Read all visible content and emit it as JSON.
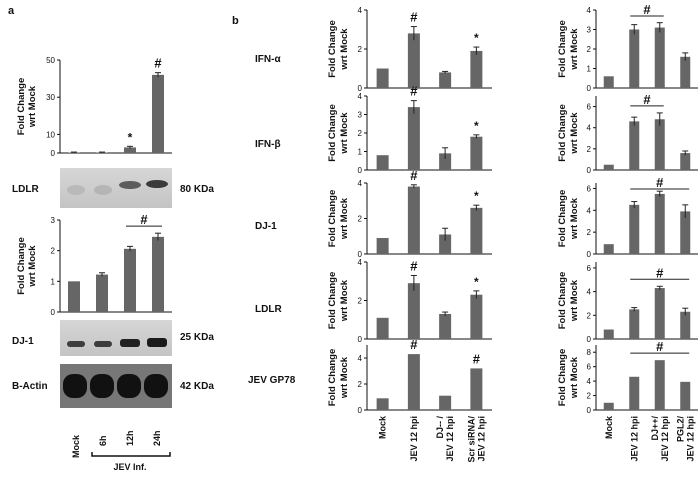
{
  "panel_labels": {
    "a": "a",
    "b": "b"
  },
  "yaxis_label": {
    "line1": "Fold Change",
    "line2": "wrt Mock"
  },
  "blots": {
    "ldlr": {
      "label": "LDLR",
      "size": "80 KDa"
    },
    "dj1": {
      "label": "DJ-1",
      "size": "25 KDa"
    },
    "actin": {
      "label": "B-Actin",
      "size": "42 KDa"
    }
  },
  "panel_a_xlabels": [
    "Mock",
    "6h",
    "12h",
    "24h"
  ],
  "panel_a_group_label": "JEV Inf.",
  "row_labels": [
    "IFN-α",
    "IFN-β",
    "DJ-1",
    "LDLR",
    "JEV GP78"
  ],
  "b_mid_xlabels": [
    [
      "Mock"
    ],
    [
      "JEV 12 hpi"
    ],
    [
      "DJ-- /",
      "JEV 12 hpi"
    ],
    [
      "Scr siRNA/",
      "JEV 12 hpi"
    ]
  ],
  "b_right_xlabels": [
    [
      "Mock"
    ],
    [
      "JEV 12 hpi"
    ],
    [
      "DJ++/",
      "JEV 12 hpi"
    ],
    [
      "PGL2/",
      "JEV 12 hpi"
    ]
  ],
  "colors": {
    "bar": "#666666",
    "axis": "#111111"
  },
  "chart_data": [
    {
      "id": "a_top",
      "type": "bar",
      "categories": [
        "Mock",
        "6h",
        "12h",
        "24h"
      ],
      "values": [
        0.3,
        0.3,
        3,
        42
      ],
      "errors": [
        0.2,
        0.2,
        0.6,
        1.2
      ],
      "ylim": [
        0,
        50
      ],
      "yticks": [
        0,
        10,
        30,
        50
      ],
      "marks": [
        "",
        "",
        "*",
        "#"
      ],
      "ylabel": "Fold Change wrt Mock"
    },
    {
      "id": "a_dj1",
      "type": "bar",
      "categories": [
        "Mock",
        "6h",
        "12h",
        "24h"
      ],
      "values": [
        1,
        1.22,
        2.06,
        2.45
      ],
      "errors": [
        0,
        0.06,
        0.08,
        0.12
      ],
      "ylim": [
        0,
        3
      ],
      "yticks": [
        0,
        1,
        2,
        3
      ],
      "bracket": {
        "from": 2,
        "to": 3,
        "mark": "#"
      },
      "ylabel": "Fold Change wrt Mock"
    },
    {
      "id": "b_ifna",
      "type": "bar",
      "categories": [
        "Mock",
        "JEV 12 hpi",
        "DJ-- / JEV 12 hpi",
        "Scr siRNA/ JEV 12 hpi"
      ],
      "values": [
        1,
        2.8,
        0.8,
        1.9
      ],
      "errors": [
        0,
        0.35,
        0.05,
        0.2
      ],
      "ylim": [
        0,
        4
      ],
      "yticks": [
        0,
        2,
        4
      ],
      "marks": [
        "",
        "#",
        "",
        "*"
      ]
    },
    {
      "id": "b_ifnb",
      "type": "bar",
      "categories": [
        "Mock",
        "JEV 12 hpi",
        "DJ-- / JEV 12 hpi",
        "Scr siRNA/ JEV 12 hpi"
      ],
      "values": [
        0.8,
        3.4,
        0.9,
        1.8
      ],
      "errors": [
        0,
        0.35,
        0.3,
        0.1
      ],
      "ylim": [
        0,
        4
      ],
      "yticks": [
        0,
        1,
        2,
        3,
        4
      ],
      "marks": [
        "",
        "#",
        "",
        "*"
      ]
    },
    {
      "id": "b_dj1",
      "type": "bar",
      "categories": [
        "Mock",
        "JEV 12 hpi",
        "DJ-- / JEV 12 hpi",
        "Scr siRNA/ JEV 12 hpi"
      ],
      "values": [
        0.9,
        3.8,
        1.1,
        2.6
      ],
      "errors": [
        0,
        0.1,
        0.35,
        0.15
      ],
      "ylim": [
        0,
        4
      ],
      "yticks": [
        0,
        2,
        4
      ],
      "marks": [
        "",
        "#",
        "",
        "*"
      ]
    },
    {
      "id": "b_ldlr",
      "type": "bar",
      "categories": [
        "Mock",
        "JEV 12 hpi",
        "DJ-- / JEV 12 hpi",
        "Scr siRNA/ JEV 12 hpi"
      ],
      "values": [
        1.1,
        2.9,
        1.3,
        2.3
      ],
      "errors": [
        0,
        0.4,
        0.1,
        0.2
      ],
      "ylim": [
        0,
        4
      ],
      "yticks": [
        0,
        2,
        4
      ],
      "marks": [
        "",
        "#",
        "",
        "*"
      ]
    },
    {
      "id": "b_gp78",
      "type": "bar",
      "categories": [
        "Mock",
        "JEV 12 hpi",
        "DJ-- / JEV 12 hpi",
        "Scr siRNA/ JEV 12 hpi"
      ],
      "values": [
        0.9,
        4.3,
        1.1,
        3.2
      ],
      "errors": [
        0,
        0,
        0,
        0
      ],
      "ylim": [
        0,
        5
      ],
      "yticks": [
        0,
        2,
        4
      ],
      "marks": [
        "",
        "#",
        "",
        "#"
      ]
    },
    {
      "id": "c_ifna",
      "type": "bar",
      "categories": [
        "Mock",
        "JEV 12 hpi",
        "DJ++/ JEV 12 hpi",
        "PGL2/ JEV 12 hpi"
      ],
      "values": [
        0.6,
        3.0,
        3.1,
        1.6
      ],
      "errors": [
        0,
        0.25,
        0.25,
        0.2
      ],
      "ylim": [
        0,
        4
      ],
      "yticks": [
        0,
        1,
        2,
        3,
        4
      ],
      "bracket": {
        "from": 1,
        "to": 2,
        "mark": "#"
      }
    },
    {
      "id": "c_ifnb",
      "type": "bar",
      "categories": [
        "Mock",
        "JEV 12 hpi",
        "DJ++/ JEV 12 hpi",
        "PGL2/ JEV 12 hpi"
      ],
      "values": [
        0.5,
        4.6,
        4.8,
        1.6
      ],
      "errors": [
        0,
        0.4,
        0.6,
        0.2
      ],
      "ylim": [
        0,
        7
      ],
      "yticks": [
        0,
        2,
        4,
        6
      ],
      "bracket": {
        "from": 1,
        "to": 2,
        "mark": "#"
      }
    },
    {
      "id": "c_dj1",
      "type": "bar",
      "categories": [
        "Mock",
        "JEV 12 hpi",
        "DJ++/ JEV 12 hpi",
        "PGL2/ JEV 12 hpi"
      ],
      "values": [
        0.9,
        4.5,
        5.5,
        3.9
      ],
      "errors": [
        0,
        0.3,
        0.25,
        0.6
      ],
      "ylim": [
        0,
        6.5
      ],
      "yticks": [
        0,
        2,
        4,
        6
      ],
      "bracket": {
        "from": 1,
        "to": 3,
        "mark": "#"
      }
    },
    {
      "id": "c_ldlr",
      "type": "bar",
      "categories": [
        "Mock",
        "JEV 12 hpi",
        "DJ++/ JEV 12 hpi",
        "PGL2/ JEV 12 hpi"
      ],
      "values": [
        0.8,
        2.5,
        4.3,
        2.3
      ],
      "errors": [
        0,
        0.15,
        0.15,
        0.3
      ],
      "ylim": [
        0,
        6.5
      ],
      "yticks": [
        0,
        2,
        4,
        6
      ],
      "bracket": {
        "from": 1,
        "to": 3,
        "mark": "#"
      }
    },
    {
      "id": "c_gp78",
      "type": "bar",
      "categories": [
        "Mock",
        "JEV 12 hpi",
        "DJ++/ JEV 12 hpi",
        "PGL2/ JEV 12 hpi"
      ],
      "values": [
        1.0,
        4.6,
        6.9,
        3.9
      ],
      "errors": [
        0,
        0,
        0,
        0
      ],
      "ylim": [
        0,
        9
      ],
      "yticks": [
        0,
        2,
        4,
        6,
        8
      ],
      "bracket": {
        "from": 1,
        "to": 3,
        "mark": "#"
      }
    }
  ]
}
